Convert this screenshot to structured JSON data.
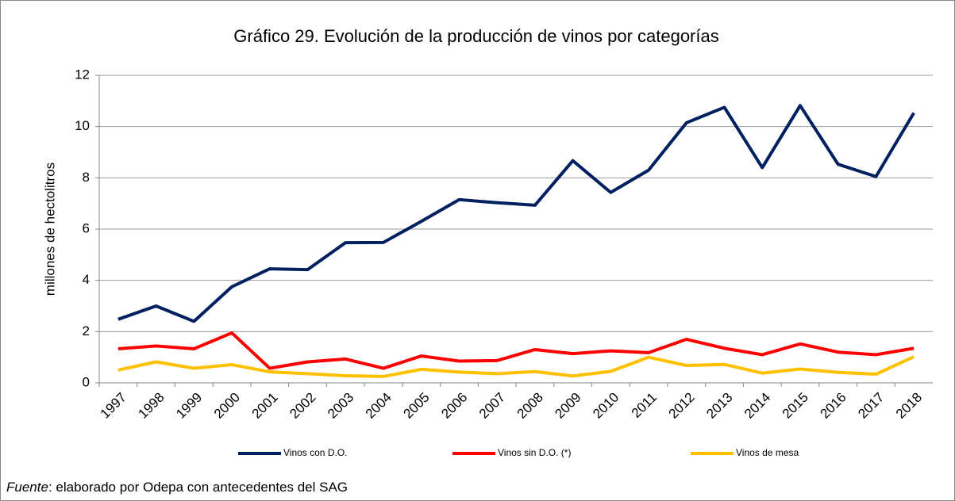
{
  "chart_data": {
    "type": "line",
    "title": "Gráfico 29. Evolución de la producción de vinos por categorías",
    "y_label": "millones de hectolitros",
    "categories": [
      "1997",
      "1998",
      "1999",
      "2000",
      "2001",
      "2002",
      "2003",
      "2004",
      "2005",
      "2006",
      "2007",
      "2008",
      "2009",
      "2010",
      "2011",
      "2012",
      "2013",
      "2014",
      "2015",
      "2016",
      "2017",
      "2018"
    ],
    "series": [
      {
        "name": "Vinos con D.O.",
        "color": "#002060",
        "values": [
          2.48,
          3.0,
          2.4,
          3.75,
          4.45,
          4.42,
          5.47,
          5.48,
          6.3,
          7.15,
          7.03,
          6.93,
          8.67,
          7.43,
          8.3,
          10.15,
          10.75,
          8.4,
          10.82,
          8.53,
          8.05,
          10.53
        ]
      },
      {
        "name": "Vinos sin D.O. (*)",
        "color": "#ff0000",
        "values": [
          1.33,
          1.44,
          1.33,
          1.95,
          0.57,
          0.82,
          0.93,
          0.57,
          1.05,
          0.85,
          0.87,
          1.3,
          1.14,
          1.25,
          1.18,
          1.7,
          1.35,
          1.1,
          1.52,
          1.2,
          1.1,
          1.35
        ]
      },
      {
        "name": "Vinos de mesa",
        "color": "#ffc000",
        "values": [
          0.5,
          0.82,
          0.57,
          0.71,
          0.43,
          0.36,
          0.28,
          0.25,
          0.53,
          0.42,
          0.36,
          0.44,
          0.27,
          0.45,
          1.0,
          0.68,
          0.72,
          0.38,
          0.54,
          0.41,
          0.34,
          1.02
        ]
      }
    ],
    "ylim": [
      0,
      12
    ],
    "yticks": [
      0,
      2,
      4,
      6,
      8,
      10,
      12
    ],
    "grid": true,
    "legend": "bottom"
  },
  "source_label": "Fuente",
  "source_text": ": elaborado por Odepa con antecedentes del SAG"
}
